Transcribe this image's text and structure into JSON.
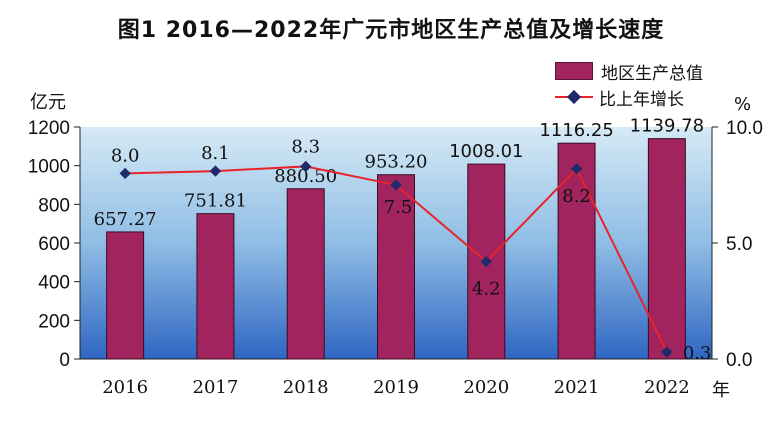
{
  "title": "图1 2016—2022年广元市地区生产总值及增长速度",
  "left_unit": "亿元",
  "right_unit": "%",
  "x_unit": "年",
  "colors": {
    "bar": "#a1245f",
    "line": "#e8232a",
    "marker": "#1f2a6b"
  },
  "chart_data": {
    "type": "bar",
    "categories": [
      "2016",
      "2017",
      "2018",
      "2019",
      "2020",
      "2021",
      "2022"
    ],
    "series": [
      {
        "name": "地区生产总值",
        "type": "bar",
        "axis": "left",
        "values": [
          657.27,
          751.81,
          880.5,
          953.2,
          1008.01,
          1116.25,
          1139.78
        ],
        "labels": [
          "657.27",
          "751.81",
          "880.50",
          "953.20",
          "1008.01",
          "1116.25",
          "1139.78"
        ]
      },
      {
        "name": "比上年增长",
        "type": "line",
        "axis": "right",
        "values": [
          8.0,
          8.1,
          8.3,
          7.5,
          4.2,
          8.2,
          0.3
        ],
        "labels": [
          "8.0",
          "8.1",
          "8.3",
          "7.5",
          "4.2",
          "8.2",
          "0.3"
        ]
      }
    ],
    "y_left": {
      "min": 0,
      "max": 1200,
      "ticks": [
        "0",
        "200",
        "400",
        "600",
        "800",
        "1000",
        "1200"
      ]
    },
    "y_right": {
      "min": 0,
      "max": 10,
      "ticks": [
        "0.0",
        "5.0",
        "10.0"
      ]
    },
    "legend": "top-right",
    "grid": false
  }
}
